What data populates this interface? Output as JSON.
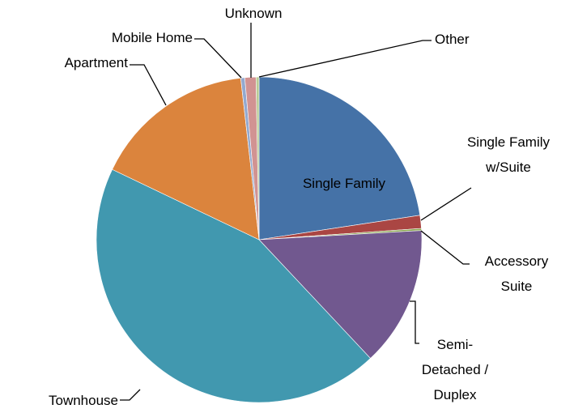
{
  "chart_data": {
    "type": "pie",
    "categories": [
      "Single Family",
      "Single Family w/Suite",
      "Accessory Suite",
      "Semi-Detached / Duplex",
      "Townhouse",
      "Apartment",
      "Mobile Home",
      "Unknown",
      "Other"
    ],
    "values": [
      22.6,
      1.3,
      0.2,
      13.9,
      44.1,
      16.1,
      0.4,
      1.1,
      0.3
    ],
    "colors": [
      "#4572a7",
      "#aa4643",
      "#89a54e",
      "#71588f",
      "#4198af",
      "#db843d",
      "#93a9cf",
      "#d19392",
      "#b9cd96"
    ]
  }
}
